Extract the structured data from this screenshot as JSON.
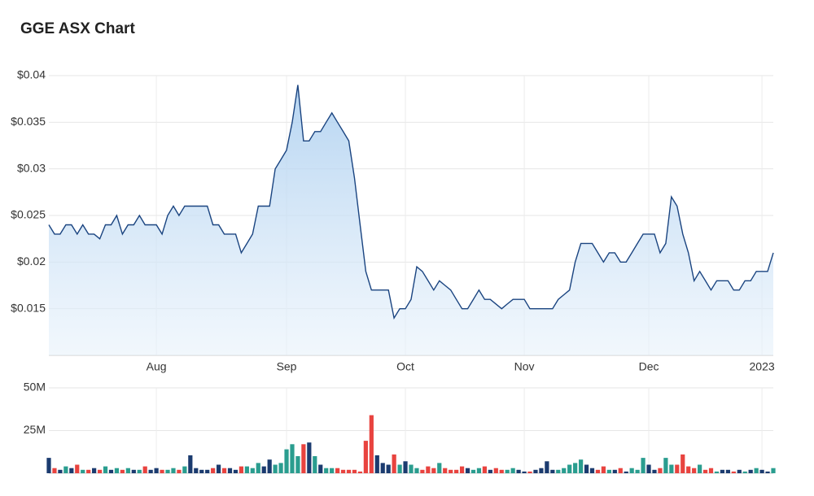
{
  "chart_data": [
    {
      "type": "line",
      "title": "GGE ASX Chart",
      "color": "#1a4480",
      "grid": true,
      "categories": [
        null,
        null,
        null,
        null,
        null,
        null,
        null,
        null,
        null,
        null,
        null,
        null,
        null,
        null,
        null,
        null,
        null,
        null,
        null,
        "Aug",
        null,
        null,
        null,
        null,
        null,
        null,
        null,
        null,
        null,
        null,
        null,
        null,
        null,
        null,
        null,
        null,
        null,
        null,
        null,
        null,
        null,
        null,
        "Sep",
        null,
        null,
        null,
        null,
        null,
        null,
        null,
        null,
        null,
        null,
        null,
        null,
        null,
        null,
        null,
        null,
        null,
        null,
        null,
        null,
        "Oct",
        null,
        null,
        null,
        null,
        null,
        null,
        null,
        null,
        null,
        null,
        null,
        null,
        null,
        null,
        null,
        null,
        null,
        null,
        null,
        null,
        "Nov",
        null,
        null,
        null,
        null,
        null,
        null,
        null,
        null,
        null,
        null,
        null,
        null,
        null,
        null,
        null,
        null,
        null,
        null,
        null,
        null,
        null,
        "Dec",
        null,
        null,
        null,
        null,
        null,
        null,
        null,
        null,
        null,
        null,
        null,
        null,
        null,
        null,
        null,
        null,
        null,
        null,
        null,
        "2023",
        null,
        null
      ],
      "values": [
        0.024,
        0.023,
        0.023,
        0.024,
        0.024,
        0.023,
        0.024,
        0.023,
        0.023,
        0.0225,
        0.024,
        0.024,
        0.025,
        0.023,
        0.024,
        0.024,
        0.025,
        0.024,
        0.024,
        0.024,
        0.023,
        0.025,
        0.026,
        0.025,
        0.026,
        0.026,
        0.026,
        0.026,
        0.026,
        0.024,
        0.024,
        0.023,
        0.023,
        0.023,
        0.021,
        0.022,
        0.023,
        0.026,
        0.026,
        0.026,
        0.03,
        0.031,
        0.032,
        0.035,
        0.039,
        0.033,
        0.033,
        0.034,
        0.034,
        0.035,
        0.036,
        0.035,
        0.034,
        0.033,
        0.029,
        0.024,
        0.019,
        0.017,
        0.017,
        0.017,
        0.017,
        0.014,
        0.015,
        0.015,
        0.016,
        0.0195,
        0.019,
        0.018,
        0.017,
        0.018,
        0.0175,
        0.017,
        0.016,
        0.015,
        0.015,
        0.016,
        0.017,
        0.016,
        0.016,
        0.0155,
        0.015,
        0.0155,
        0.016,
        0.016,
        0.016,
        0.015,
        0.015,
        0.015,
        0.015,
        0.015,
        0.016,
        0.0165,
        0.017,
        0.02,
        0.022,
        0.022,
        0.022,
        0.021,
        0.02,
        0.021,
        0.021,
        0.02,
        0.02,
        0.021,
        0.022,
        0.023,
        0.023,
        0.023,
        0.021,
        0.022,
        0.027,
        0.026,
        0.023,
        0.021,
        0.018,
        0.019,
        0.018,
        0.017,
        0.018,
        0.018,
        0.018,
        0.017,
        0.017,
        0.018,
        0.018,
        0.019,
        0.019,
        0.019,
        0.021
      ],
      "ylim": [
        0.01,
        0.04
      ],
      "yticks": [
        {
          "value": 0.015,
          "label": "$0.015"
        },
        {
          "value": 0.02,
          "label": "$0.02"
        },
        {
          "value": 0.025,
          "label": "$0.025"
        },
        {
          "value": 0.03,
          "label": "$0.03"
        },
        {
          "value": 0.035,
          "label": "$0.035"
        },
        {
          "value": 0.04,
          "label": "$0.04"
        }
      ]
    },
    {
      "type": "bar",
      "grid": true,
      "colors": {
        "up": "#2a9d8f",
        "down": "#e8433f",
        "flat": "#1b3b6f"
      },
      "values": [
        9000000,
        3000000,
        2000000,
        4000000,
        3000000,
        5000000,
        2000000,
        2000000,
        3000000,
        2000000,
        4000000,
        2000000,
        3000000,
        2000000,
        3000000,
        2000000,
        2000000,
        4000000,
        2000000,
        3000000,
        2000000,
        2000000,
        3000000,
        2000000,
        4000000,
        10500000,
        3000000,
        2000000,
        2000000,
        3000000,
        5000000,
        3000000,
        3000000,
        2000000,
        4000000,
        4000000,
        3000000,
        6000000,
        4000000,
        8000000,
        5000000,
        6000000,
        14000000,
        17000000,
        10000000,
        17000000,
        18000000,
        10000000,
        5000000,
        3000000,
        3000000,
        3000000,
        2000000,
        2000000,
        2000000,
        1000000,
        19000000,
        34000000,
        10500000,
        6000000,
        5000000,
        11000000,
        5000000,
        7000000,
        5000000,
        3000000,
        2000000,
        4000000,
        3000000,
        6000000,
        3000000,
        2000000,
        2000000,
        4000000,
        3000000,
        2000000,
        3000000,
        4000000,
        2000000,
        3000000,
        2000000,
        2000000,
        3000000,
        2000000,
        1000000,
        1000000,
        2000000,
        3000000,
        7000000,
        2000000,
        2000000,
        3000000,
        5000000,
        6000000,
        8000000,
        5000000,
        3000000,
        2000000,
        4000000,
        2000000,
        2000000,
        3000000,
        1000000,
        3000000,
        2000000,
        9000000,
        5000000,
        2000000,
        3000000,
        9000000,
        5000000,
        5000000,
        11000000,
        4000000,
        3000000,
        5000000,
        2000000,
        3000000,
        1000000,
        2000000,
        2000000,
        1000000,
        2000000,
        1000000,
        2000000,
        3000000,
        2000000,
        1000000,
        3000000
      ],
      "ylim": [
        0,
        50000000
      ],
      "yticks": [
        {
          "value": 25000000,
          "label": "25M"
        },
        {
          "value": 50000000,
          "label": "50M"
        }
      ]
    }
  ]
}
